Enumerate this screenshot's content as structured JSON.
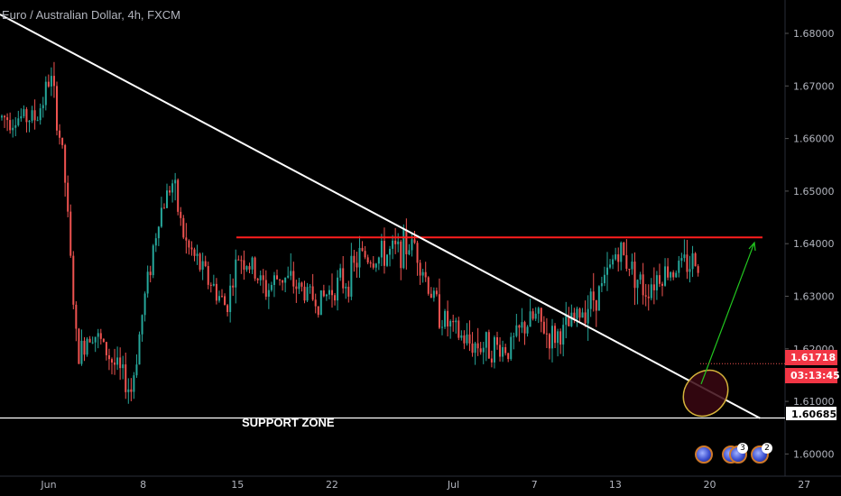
{
  "header": {
    "title": "Euro / Australian Dollar, 4h, FXCM"
  },
  "price_axis": {
    "ticks": [
      "1.68000",
      "1.67000",
      "1.66000",
      "1.65000",
      "1.64000",
      "1.63000",
      "1.62000",
      "1.61000",
      "1.60000"
    ],
    "last_price": "1.61718",
    "countdown": "03:13:45",
    "support_price": "1.60685"
  },
  "time_axis": {
    "ticks": [
      "Jun",
      "8",
      "15",
      "22",
      "Jul",
      "7",
      "13",
      "20",
      "27"
    ]
  },
  "annotations": {
    "support_label": "SUPPORT ZONE"
  },
  "events": {
    "counts": [
      "3",
      "2"
    ]
  },
  "colors": {
    "background": "#000000",
    "bull": "#26a69a",
    "bear": "#ef5350",
    "resistance": "#ff1e1e",
    "trendline": "#ffffff",
    "support": "#ffffff",
    "arrow": "#22c71f",
    "ellipse_stroke": "#d4b23a",
    "ellipse_fill": "#3a0712"
  },
  "chart_data": {
    "type": "line",
    "title": "Euro / Australian Dollar, 4h, FXCM",
    "xlabel": "",
    "ylabel": "",
    "ylim": [
      1.5965,
      1.6855
    ],
    "x_ticks": [
      "Jun",
      "8",
      "15",
      "22",
      "Jul",
      "7",
      "13",
      "20",
      "27"
    ],
    "series": [
      {
        "x": [
          "Jun 1",
          "Jun 2",
          "Jun 3",
          "Jun 4",
          "Jun 5",
          "Jun 8",
          "Jun 9",
          "Jun 10",
          "Jun 11",
          "Jun 12",
          "Jun 15",
          "Jun 16",
          "Jun 17",
          "Jun 18",
          "Jun 19",
          "Jun 22",
          "Jun 23",
          "Jun 24",
          "Jun 25",
          "Jun 26",
          "Jun 29",
          "Jun 30",
          "Jul 1",
          "Jul 2",
          "Jul 3",
          "Jul 6",
          "Jul 7",
          "Jul 8",
          "Jul 9",
          "Jul 10",
          "Jul 13",
          "Jul 14",
          "Jul 15",
          "Jul 16",
          "Jul 17",
          "Jul 20",
          "Jul 21",
          "Jul 22"
        ],
        "values": [
          1.664,
          1.672,
          1.655,
          1.618,
          1.624,
          1.612,
          1.63,
          1.645,
          1.652,
          1.64,
          1.628,
          1.638,
          1.635,
          1.631,
          1.634,
          1.629,
          1.632,
          1.633,
          1.638,
          1.637,
          1.64,
          1.632,
          1.626,
          1.623,
          1.621,
          1.62,
          1.624,
          1.626,
          1.622,
          1.623,
          1.632,
          1.639,
          1.636,
          1.631,
          1.634,
          1.637,
          1.63,
          1.617
        ]
      }
    ],
    "drawings": {
      "resistance_level": 1.6412,
      "support_level": 1.60685,
      "support_label": "SUPPORT ZONE",
      "trendline": [
        {
          "x": "May 28",
          "y": 1.684
        },
        {
          "x": "Jul 24",
          "y": 1.6068
        }
      ],
      "projection_arrow": [
        {
          "x": "Jul 21",
          "y": 1.6133
        },
        {
          "x": "Jul 24",
          "y": 1.6402
        }
      ]
    },
    "grid": false,
    "legend": "none"
  }
}
